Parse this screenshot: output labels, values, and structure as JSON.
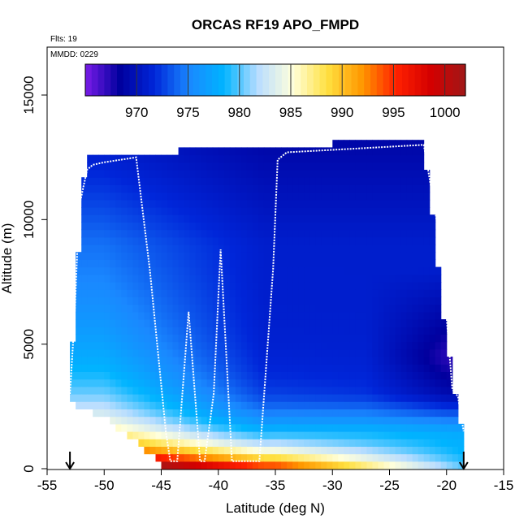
{
  "chart_data": {
    "type": "heatmap",
    "title": "ORCAS RF19 APO_FMPD",
    "annotations": {
      "flights": "Flts: 19",
      "date": "MMDD: 0229"
    },
    "xlabel": "Latitude (deg N)",
    "ylabel": "Altitude (m)",
    "xlim": [
      -55,
      -15
    ],
    "ylim": [
      0,
      16500
    ],
    "x_ticks": [
      -55,
      -50,
      -45,
      -40,
      -35,
      -30,
      -25,
      -20,
      -15
    ],
    "x_tick_labels": [
      "-55",
      "-50",
      "-45",
      "-40",
      "-35",
      "-30",
      "-25",
      "-20",
      "-15"
    ],
    "y_ticks": [
      0,
      5000,
      10000,
      15000
    ],
    "y_tick_labels": [
      "0",
      "5000",
      "10000",
      "15000"
    ],
    "colorbar": {
      "range": [
        965,
        1002
      ],
      "ticks": [
        970,
        975,
        980,
        985,
        990,
        995,
        1000
      ],
      "tick_labels": [
        "970",
        "975",
        "980",
        "985",
        "990",
        "995",
        "1000"
      ],
      "colors": [
        "#7a1be8",
        "#00009e",
        "#0026d9",
        "#1a88ff",
        "#00b4ff",
        "#b9ddff",
        "#ffffdc",
        "#ffe040",
        "#ff9800",
        "#ff2000",
        "#d40000",
        "#a01818"
      ]
    },
    "domain": {
      "lat_min": -53.0,
      "lat_max": -18.5,
      "top_altitude": [
        [
          -53,
          3500
        ],
        [
          -52.5,
          6500
        ],
        [
          -52,
          10500
        ],
        [
          -51.5,
          12500
        ],
        [
          -44,
          12500
        ],
        [
          -43,
          12700
        ],
        [
          -30,
          12900
        ],
        [
          -22,
          13000
        ],
        [
          -21,
          9000
        ],
        [
          -20,
          5000
        ],
        [
          -19,
          2000
        ],
        [
          -18.5,
          1200
        ]
      ],
      "bottom_altitude": [
        [
          -53,
          2800
        ],
        [
          -50,
          2200
        ],
        [
          -47,
          1200
        ],
        [
          -45,
          300
        ],
        [
          -43,
          0
        ],
        [
          -18.5,
          0
        ]
      ]
    },
    "flight_track": {
      "series": [
        {
          "name": "flight track",
          "lat": [
            -53,
            -52.6,
            -52.2,
            -51.5,
            -51,
            -50,
            -47.2,
            -46,
            -44.6,
            -44.2,
            -43.6,
            -42.6,
            -42.6,
            -41.6,
            -41.2,
            -40.4,
            -39.8,
            -38.8,
            -37.6,
            -36.8,
            -36.4,
            -35.2,
            -34.8,
            -34,
            -30,
            -22,
            -20.5,
            -19.5,
            -19,
            -18.5
          ],
          "alt": [
            3000,
            6000,
            10500,
            12000,
            12200,
            12300,
            12500,
            8000,
            1500,
            300,
            300,
            6300,
            6300,
            300,
            300,
            3000,
            8800,
            300,
            300,
            300,
            300,
            8000,
            12400,
            12700,
            12800,
            13000,
            9000,
            3200,
            2900,
            1500
          ]
        }
      ]
    },
    "arrows": [
      -53,
      -18.5
    ]
  }
}
